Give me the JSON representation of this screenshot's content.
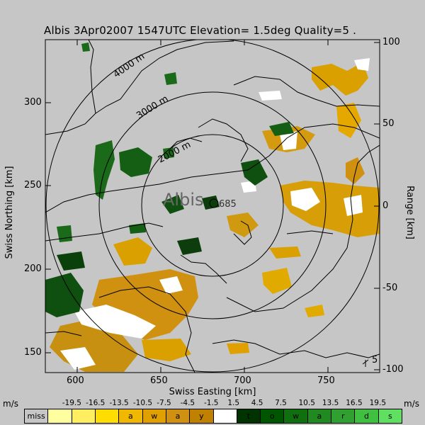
{
  "title": "Albis 3Apr02007 1547UTC Elevation= 1.5deg Quality=5 .",
  "axes": {
    "x_label": "Swiss Easting [km]",
    "y_label_left": "Swiss Northing [km]",
    "y_label_right": "Range [km]",
    "x_ticks": [
      "600",
      "650",
      "700",
      "750"
    ],
    "y_ticks_left": [
      "300",
      "250",
      "200",
      "150"
    ],
    "y_ticks_right": [
      "100",
      "50",
      "0",
      "-50",
      "-100"
    ]
  },
  "map": {
    "station_label": "Albis",
    "station_code": "685",
    "ring_labels": [
      "4000 m",
      "3000 m",
      "2000 m"
    ],
    "corner_number": "5"
  },
  "legend": {
    "unit_left": "m/s",
    "unit_right": "m/s",
    "thresholds": [
      "-19.5",
      "-16.5",
      "-13.5",
      "-10.5",
      "-7.5",
      "-4.5",
      "-1.5",
      "1.5",
      "4.5",
      "7.5",
      "10.5",
      "13.5",
      "16.5",
      "19.5"
    ],
    "cells": [
      {
        "label": "miss",
        "color": "#c6c6c6"
      },
      {
        "label": "",
        "color": "#ffffa0"
      },
      {
        "label": "",
        "color": "#ffee60"
      },
      {
        "label": "",
        "color": "#ffdd00"
      },
      {
        "label": "a",
        "color": "#f0b800"
      },
      {
        "label": "w",
        "color": "#e0a000"
      },
      {
        "label": "a",
        "color": "#d09010"
      },
      {
        "label": "y",
        "color": "#c08000"
      },
      {
        "label": "",
        "color": "#ffffff"
      },
      {
        "label": "t",
        "color": "#003300"
      },
      {
        "label": "o",
        "color": "#005500"
      },
      {
        "label": "w",
        "color": "#107010"
      },
      {
        "label": "a",
        "color": "#208a20"
      },
      {
        "label": "r",
        "color": "#30a030"
      },
      {
        "label": "d",
        "color": "#40c040"
      },
      {
        "label": "s",
        "color": "#60e060"
      }
    ]
  }
}
